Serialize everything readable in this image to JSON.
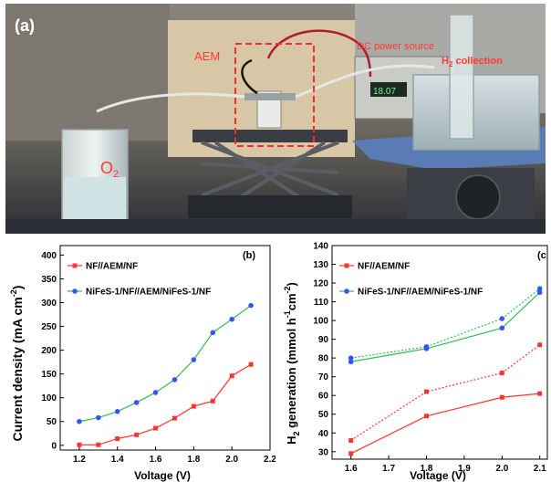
{
  "photo": {
    "panel_label": "(a)",
    "labels": {
      "aem": "AEM",
      "dc_power": "DC power source",
      "h2_collection_prefix": "H",
      "h2_collection_sub": "2",
      "h2_collection_suffix": " collection",
      "o2_prefix": "O",
      "o2_sub": "2"
    },
    "colors": {
      "label": "#ff3b30",
      "background_top": "#7f7a72",
      "floor": "#2a2d33",
      "box": "#ff2a2a"
    }
  },
  "chart_data": [
    {
      "type": "line",
      "panel_label": "(b)",
      "xlabel": "Voltage (V)",
      "ylabel_main": "Current density (mA cm",
      "ylabel_sup": "-2",
      "ylabel_close": ")",
      "xlim": [
        1.1,
        2.2
      ],
      "ylim": [
        -10,
        420
      ],
      "x_ticks": [
        1.2,
        1.4,
        1.6,
        1.8,
        2.0,
        2.2
      ],
      "x_tick_labels": [
        "1.2",
        "1.4",
        "1.6",
        "1.8",
        "2.0",
        "2.2"
      ],
      "y_ticks": [
        0,
        50,
        100,
        150,
        200,
        250,
        300,
        350,
        400
      ],
      "y_tick_labels": [
        "0",
        "50",
        "100",
        "150",
        "200",
        "250",
        "300",
        "350",
        "400"
      ],
      "legend_position": "top-left",
      "series": [
        {
          "name": "NF//AEM/NF",
          "color": "#ff3333",
          "marker": "square",
          "line_style": "solid",
          "x": [
            1.2,
            1.3,
            1.4,
            1.5,
            1.6,
            1.7,
            1.8,
            1.9,
            2.0,
            2.1
          ],
          "y": [
            1,
            1,
            14,
            22,
            36,
            57,
            82,
            93,
            146,
            170
          ]
        },
        {
          "name": "NiFeS-1/NF//AEM/NiFeS-1/NF",
          "color": "#3355ff",
          "line_color": "#33bb55",
          "marker": "circle",
          "line_style": "solid",
          "x": [
            1.2,
            1.3,
            1.4,
            1.5,
            1.6,
            1.7,
            1.8,
            1.9,
            2.0,
            2.1
          ],
          "y": [
            50,
            58,
            71,
            90,
            111,
            138,
            180,
            237,
            265,
            294
          ]
        }
      ]
    },
    {
      "type": "line",
      "panel_label": "(c",
      "xlabel": "Voltage (V)",
      "ylabel_main": "H",
      "ylabel_sub": "2",
      "ylabel_rest": " generation (mmol h",
      "ylabel_sup1": "-1",
      "ylabel_mid": "cm",
      "ylabel_sup2": "-2",
      "ylabel_close": ")",
      "xlim": [
        1.55,
        2.12
      ],
      "ylim": [
        26,
        140
      ],
      "x_ticks": [
        1.6,
        1.7,
        1.8,
        1.9,
        2.0,
        2.1
      ],
      "x_tick_labels": [
        "1.6",
        "1.7",
        "1.8",
        "1.9",
        "2.0",
        "2.1"
      ],
      "y_ticks": [
        30,
        40,
        50,
        60,
        70,
        80,
        90,
        100,
        110,
        120,
        130,
        140
      ],
      "y_tick_labels": [
        "30",
        "40",
        "50",
        "60",
        "70",
        "80",
        "90",
        "100",
        "110",
        "120",
        "130",
        "140"
      ],
      "legend_position": "top-left",
      "series": [
        {
          "name": "NF//AEM/NF",
          "color": "#ff3333",
          "marker": "square",
          "x": [
            1.6,
            1.8,
            2.0,
            2.1
          ],
          "y_solid": [
            29,
            49,
            59,
            61
          ],
          "y_dotted": [
            36,
            62,
            72,
            87
          ]
        },
        {
          "name": "NiFeS-1/NF//AEM/NiFeS-1/NF",
          "color": "#3355ff",
          "line_color": "#33bb55",
          "marker": "circle",
          "x": [
            1.6,
            1.8,
            2.0,
            2.1
          ],
          "y_solid": [
            78,
            85,
            96,
            115
          ],
          "y_dotted": [
            80,
            86,
            101,
            117
          ]
        }
      ]
    }
  ]
}
